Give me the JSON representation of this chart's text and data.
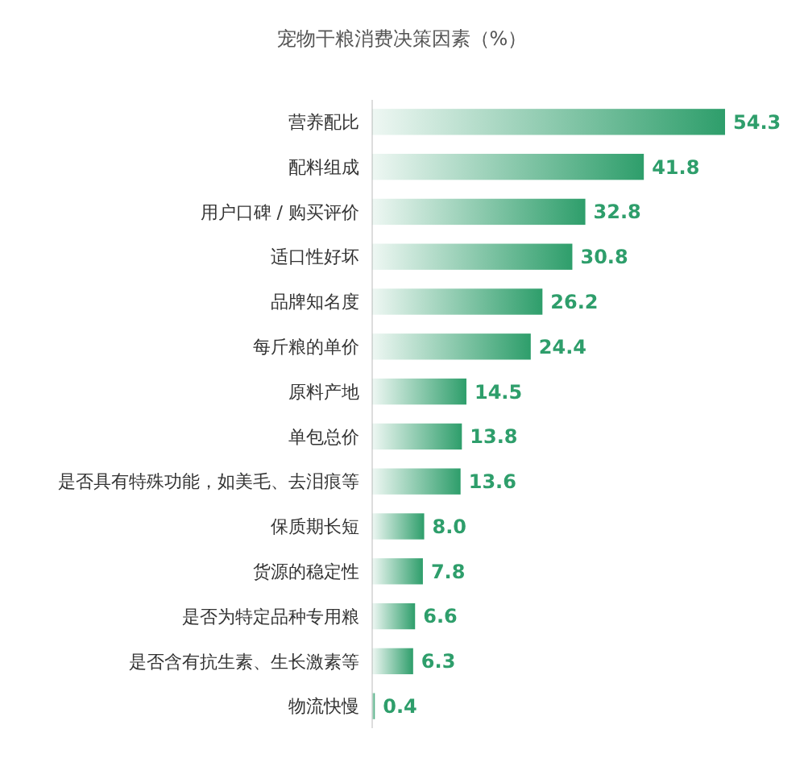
{
  "chart_data": {
    "type": "bar",
    "orientation": "horizontal",
    "title": "宠物干粮消费决策因素（%）",
    "categories": [
      "营养配比",
      "配料组成",
      "用户口碑 / 购买评价",
      "适口性好坏",
      "品牌知名度",
      "每斤粮的单价",
      "原料产地",
      "单包总价",
      "是否具有特殊功能，如美毛、去泪痕等",
      "保质期长短",
      "货源的稳定性",
      "是否为特定品种专用粮",
      "是否含有抗生素、生长激素等",
      "物流快慢"
    ],
    "values": [
      54.3,
      41.8,
      32.8,
      30.8,
      26.2,
      24.4,
      14.5,
      13.8,
      13.6,
      8.0,
      7.8,
      6.6,
      6.3,
      0.4
    ],
    "value_labels": [
      "54.3",
      "41.8",
      "32.8",
      "30.8",
      "26.2",
      "24.4",
      "14.5",
      "13.8",
      "13.6",
      "8.0",
      "7.8",
      "6.6",
      "6.3",
      "0.4"
    ],
    "color": "#2e9e6b"
  }
}
